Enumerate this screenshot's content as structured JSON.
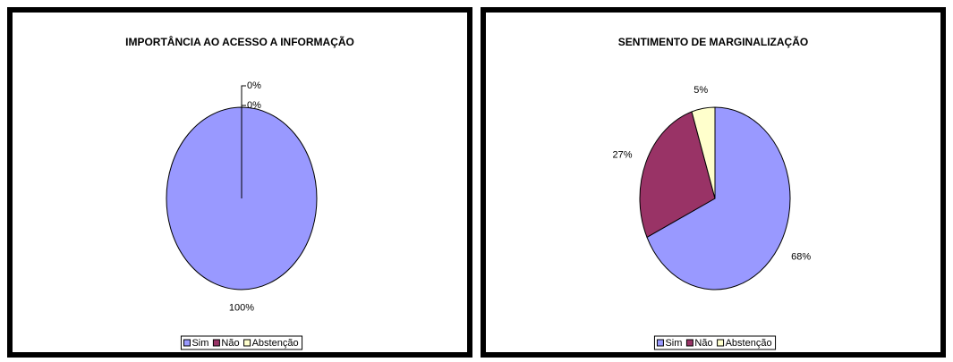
{
  "chart_data": [
    {
      "type": "pie",
      "title": "IMPORTÂNCIA AO ACESSO A INFORMAÇÃO",
      "categories": [
        "Sim",
        "Não",
        "Abstenção"
      ],
      "values": [
        100,
        0,
        0
      ],
      "value_labels": [
        "100%",
        "0%",
        "0%"
      ],
      "colors": [
        "#9999ff",
        "#993366",
        "#ffffcc"
      ],
      "legend": "bottom"
    },
    {
      "type": "pie",
      "title": "SENTIMENTO DE MARGINALIZAÇÃO",
      "categories": [
        "Sim",
        "Não",
        "Abstenção"
      ],
      "values": [
        68,
        27,
        5
      ],
      "value_labels": [
        "68%",
        "27%",
        "5%"
      ],
      "colors": [
        "#9999ff",
        "#993366",
        "#ffffcc"
      ],
      "legend": "bottom"
    }
  ]
}
